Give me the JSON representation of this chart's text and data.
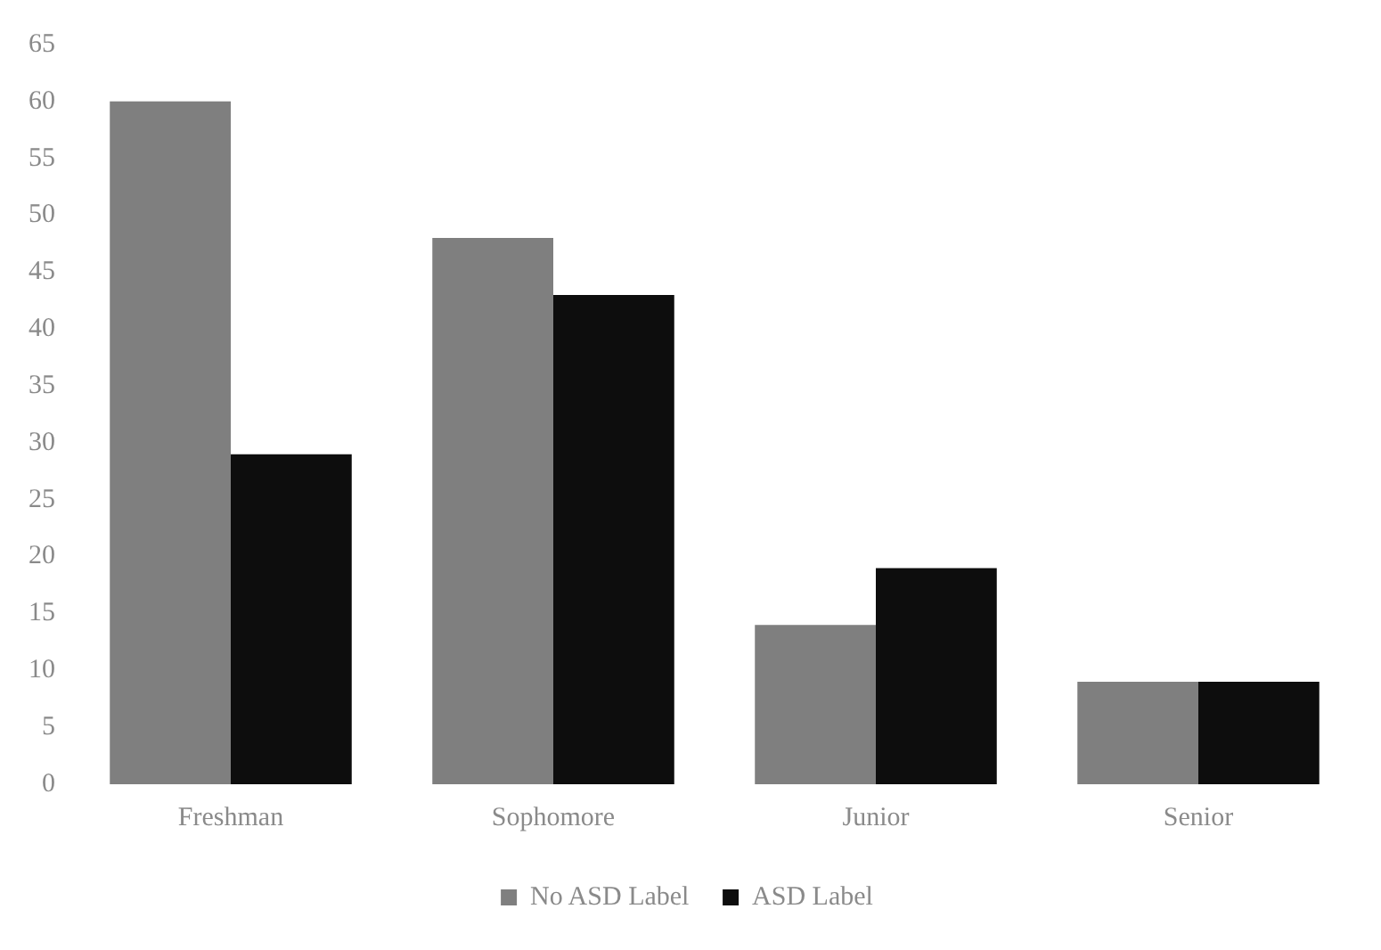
{
  "chart_data": {
    "type": "bar",
    "categories": [
      "Freshman",
      "Sophomore",
      "Junior",
      "Senior"
    ],
    "series": [
      {
        "name": "No ASD Label",
        "color": "#7f7f7f",
        "values": [
          60,
          48,
          14,
          9
        ]
      },
      {
        "name": "ASD Label",
        "color": "#0d0d0d",
        "values": [
          29,
          43,
          19,
          9
        ]
      }
    ],
    "ylim": [
      0,
      65
    ],
    "yticks": [
      0,
      5,
      10,
      15,
      20,
      25,
      30,
      35,
      40,
      45,
      50,
      55,
      60,
      65
    ],
    "grid": false,
    "legend": "bottom"
  }
}
